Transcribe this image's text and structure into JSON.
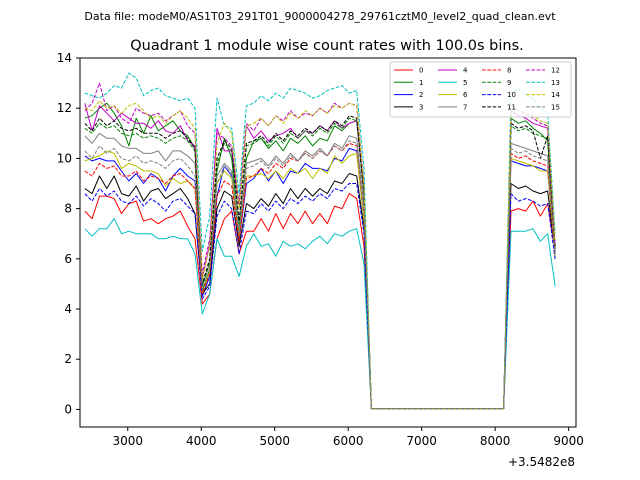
{
  "suptitle": "Data file: modeM0/AS1T03_291T01_9000004278_29761cztM0_level2_quad_clean.evt",
  "chart_data": {
    "type": "line",
    "title": "Quadrant 1 module wise count rates with 100.0s bins.",
    "xlabel": "",
    "ylabel": "",
    "x_offset_label": "+3.5482e8",
    "xlim": [
      2350,
      9100
    ],
    "ylim": [
      -0.7,
      14.0
    ],
    "x_ticks": [
      3000,
      4000,
      5000,
      6000,
      7000,
      8000,
      9000
    ],
    "x_tick_labels": [
      "3000",
      "4000",
      "5000",
      "6000",
      "7000",
      "8000",
      "9000"
    ],
    "y_ticks": [
      0,
      2,
      4,
      6,
      8,
      10,
      12,
      14
    ],
    "y_tick_labels": [
      "0",
      "2",
      "4",
      "6",
      "8",
      "10",
      "12",
      "14"
    ],
    "grid": false,
    "legend_position": "top-right",
    "x": [
      2415,
      2515,
      2615,
      2715,
      2815,
      2915,
      3015,
      3115,
      3215,
      3315,
      3415,
      3515,
      3615,
      3715,
      3815,
      3915,
      4015,
      4115,
      4215,
      4315,
      4415,
      4515,
      4615,
      4715,
      4815,
      4915,
      5015,
      5115,
      5215,
      5315,
      5415,
      5515,
      5615,
      5715,
      5815,
      5915,
      6015,
      6115,
      6215,
      6315,
      8115,
      8215,
      8315,
      8415,
      8515,
      8615,
      8715,
      8815
    ],
    "series": [
      {
        "name": "0",
        "color": "#ff0000",
        "dash": "solid",
        "values": [
          7.9,
          7.6,
          8.5,
          8.5,
          8.4,
          7.8,
          8.2,
          8.3,
          7.5,
          7.6,
          7.4,
          7.6,
          7.7,
          7.9,
          7.3,
          6.8,
          4.2,
          4.6,
          6.8,
          7.6,
          7.9,
          6.2,
          7.1,
          7.1,
          7.6,
          7.1,
          7.8,
          7.2,
          7.8,
          7.4,
          7.9,
          7.4,
          7.8,
          7.4,
          8.1,
          8.0,
          8.6,
          8.4,
          6.5,
          0.02,
          0.02,
          7.9,
          8.0,
          7.9,
          8.3,
          7.7,
          8.2,
          6.3
        ]
      },
      {
        "name": "1",
        "color": "#008000",
        "dash": "solid",
        "values": [
          11.6,
          11.7,
          12.0,
          12.2,
          11.8,
          11.3,
          10.5,
          11.6,
          11.0,
          11.7,
          11.1,
          11.3,
          11.5,
          11.1,
          10.9,
          10.4,
          4.7,
          5.6,
          9.5,
          10.8,
          10.0,
          7.0,
          10.0,
          10.7,
          10.8,
          10.4,
          10.7,
          10.3,
          10.8,
          10.6,
          10.9,
          10.5,
          10.8,
          10.7,
          11.3,
          11.1,
          11.4,
          11.5,
          8.7,
          0.02,
          0.02,
          11.6,
          11.4,
          11.5,
          11.2,
          11.0,
          10.7,
          6.0
        ]
      },
      {
        "name": "2",
        "color": "#0000ff",
        "dash": "solid",
        "values": [
          10.1,
          9.9,
          10.0,
          9.9,
          9.9,
          9.5,
          9.1,
          9.4,
          9.0,
          9.4,
          9.2,
          8.7,
          9.3,
          9.6,
          9.3,
          9.1,
          4.5,
          5.3,
          8.5,
          9.7,
          9.3,
          6.7,
          9.0,
          9.2,
          9.6,
          9.1,
          9.5,
          9.0,
          9.5,
          9.4,
          9.8,
          9.6,
          9.6,
          9.5,
          10.0,
          9.9,
          10.4,
          10.3,
          7.5,
          0.02,
          0.02,
          9.9,
          9.8,
          9.7,
          9.7,
          9.6,
          9.5,
          6.1
        ]
      },
      {
        "name": "3",
        "color": "#000000",
        "dash": "solid",
        "values": [
          8.8,
          8.6,
          9.3,
          8.8,
          9.3,
          8.6,
          8.5,
          8.9,
          8.3,
          8.7,
          8.8,
          8.4,
          8.6,
          8.8,
          8.4,
          7.8,
          4.6,
          5.0,
          8.0,
          8.7,
          8.5,
          6.5,
          8.2,
          8.0,
          8.4,
          8.1,
          8.6,
          8.2,
          8.8,
          8.4,
          8.8,
          8.5,
          8.8,
          8.6,
          9.1,
          9.0,
          9.4,
          9.3,
          7.2,
          0.02,
          0.02,
          9.0,
          8.8,
          8.9,
          8.7,
          8.6,
          8.7,
          6.2
        ]
      },
      {
        "name": "4",
        "color": "#bf00bf",
        "dash": "solid",
        "values": [
          12.2,
          11.1,
          12.1,
          11.8,
          11.5,
          11.8,
          11.6,
          11.4,
          11.4,
          11.2,
          11.5,
          11.1,
          11.0,
          11.3,
          10.7,
          10.5,
          5.2,
          6.6,
          11.2,
          10.3,
          10.3,
          8.1,
          11.3,
          10.8,
          11.1,
          10.7,
          10.9,
          11.0,
          11.2,
          10.8,
          11.1,
          11.0,
          11.3,
          11.1,
          11.5,
          11.2,
          11.4,
          11.5,
          8.7,
          0.02,
          0.02,
          11.9,
          11.7,
          11.6,
          11.4,
          11.3,
          11.2,
          6.4
        ]
      },
      {
        "name": "5",
        "color": "#00bfbf",
        "dash": "solid",
        "values": [
          7.2,
          6.9,
          7.2,
          7.2,
          7.6,
          7.0,
          7.1,
          7.0,
          7.0,
          7.0,
          6.8,
          6.8,
          6.9,
          6.8,
          6.8,
          6.2,
          3.8,
          4.6,
          6.8,
          6.1,
          6.1,
          5.3,
          6.5,
          7.0,
          6.5,
          6.6,
          6.1,
          6.7,
          6.5,
          6.6,
          6.4,
          6.7,
          6.9,
          6.6,
          7.0,
          6.9,
          7.1,
          7.2,
          5.8,
          0.02,
          0.02,
          7.1,
          7.1,
          7.1,
          7.2,
          6.7,
          7.0,
          4.9
        ]
      },
      {
        "name": "6",
        "color": "#bfbf00",
        "dash": "solid",
        "values": [
          9.9,
          10.0,
          10.1,
          10.3,
          10.2,
          9.6,
          9.8,
          9.7,
          9.5,
          9.5,
          9.4,
          8.9,
          9.2,
          9.0,
          9.1,
          8.8,
          4.6,
          5.5,
          9.0,
          9.5,
          9.2,
          6.9,
          9.3,
          9.3,
          9.4,
          9.2,
          9.5,
          9.2,
          9.6,
          9.4,
          9.6,
          9.2,
          9.6,
          9.4,
          10.1,
          9.8,
          10.1,
          10.2,
          7.5,
          0.02,
          0.02,
          10.0,
          9.9,
          9.8,
          9.7,
          9.5,
          9.5,
          6.1
        ]
      },
      {
        "name": "7",
        "color": "#808080",
        "dash": "solid",
        "values": [
          10.9,
          10.6,
          11.0,
          10.8,
          10.8,
          10.5,
          10.4,
          10.4,
          10.2,
          10.2,
          10.3,
          9.9,
          10.3,
          10.3,
          10.1,
          9.8,
          4.9,
          5.8,
          9.3,
          9.8,
          9.5,
          7.3,
          9.8,
          9.9,
          10.0,
          9.7,
          10.1,
          9.8,
          10.2,
          9.9,
          10.3,
          10.1,
          10.4,
          10.1,
          10.6,
          10.4,
          10.9,
          10.8,
          8.1,
          0.02,
          0.02,
          10.6,
          10.5,
          10.4,
          10.3,
          10.2,
          10.1,
          6.3
        ]
      },
      {
        "name": "8",
        "color": "#ff0000",
        "dash": "dashed",
        "values": [
          9.5,
          9.3,
          9.8,
          9.6,
          9.7,
          9.3,
          9.3,
          9.5,
          9.1,
          9.3,
          9.2,
          9.0,
          9.3,
          9.4,
          9.1,
          8.8,
          4.6,
          5.4,
          8.5,
          9.1,
          8.9,
          6.7,
          9.2,
          9.3,
          9.6,
          9.4,
          9.8,
          9.6,
          10.0,
          9.9,
          10.2,
          10.0,
          10.3,
          10.1,
          10.5,
          10.3,
          10.6,
          10.5,
          7.8,
          0.02,
          0.02,
          10.2,
          10.0,
          10.1,
          9.9,
          9.8,
          9.7,
          6.2
        ]
      },
      {
        "name": "9",
        "color": "#008000",
        "dash": "dashed",
        "values": [
          11.2,
          11.0,
          11.4,
          11.2,
          11.3,
          11.0,
          10.9,
          11.0,
          10.8,
          10.9,
          10.8,
          10.6,
          10.8,
          10.9,
          10.7,
          10.3,
          4.9,
          5.9,
          9.8,
          10.6,
          10.3,
          7.4,
          10.5,
          10.6,
          10.8,
          10.5,
          10.9,
          10.6,
          11.0,
          10.8,
          11.1,
          10.9,
          11.2,
          11.0,
          11.4,
          11.2,
          11.6,
          11.5,
          8.5,
          0.02,
          0.02,
          11.3,
          11.1,
          11.2,
          11.0,
          10.9,
          10.8,
          6.4
        ]
      },
      {
        "name": "10",
        "color": "#0000ff",
        "dash": "dashed",
        "values": [
          8.6,
          8.3,
          8.8,
          8.5,
          8.7,
          8.3,
          8.2,
          8.5,
          8.1,
          8.4,
          8.2,
          7.9,
          8.3,
          8.4,
          8.1,
          7.8,
          4.4,
          4.9,
          7.7,
          8.3,
          8.0,
          6.2,
          7.9,
          7.8,
          8.2,
          7.9,
          8.3,
          8.0,
          8.4,
          8.2,
          8.5,
          8.3,
          8.6,
          8.4,
          8.8,
          8.7,
          9.0,
          9.0,
          7.0,
          0.02,
          0.02,
          8.6,
          8.3,
          8.4,
          8.3,
          8.1,
          8.2,
          6.0
        ]
      },
      {
        "name": "11",
        "color": "#000000",
        "dash": "dashed",
        "values": [
          11.4,
          11.1,
          11.6,
          11.3,
          11.5,
          11.2,
          11.1,
          11.2,
          11.0,
          11.0,
          11.0,
          10.8,
          11.0,
          11.1,
          10.8,
          10.4,
          5.0,
          6.0,
          10.0,
          10.7,
          10.4,
          7.5,
          10.6,
          10.7,
          10.9,
          10.6,
          11.0,
          10.7,
          11.1,
          10.9,
          11.2,
          11.0,
          11.3,
          11.1,
          11.5,
          11.3,
          11.7,
          11.6,
          8.6,
          0.02,
          0.02,
          11.4,
          11.2,
          11.3,
          11.1,
          10.0,
          10.9,
          6.5
        ]
      },
      {
        "name": "12",
        "color": "#bf00bf",
        "dash": "dashed",
        "values": [
          11.9,
          12.2,
          13.0,
          11.9,
          12.1,
          11.6,
          11.4,
          12.0,
          11.8,
          11.7,
          11.8,
          11.5,
          11.7,
          11.9,
          11.3,
          11.0,
          5.4,
          6.8,
          11.0,
          10.8,
          10.5,
          8.2,
          11.4,
          11.1,
          11.6,
          11.3,
          11.7,
          11.5,
          11.9,
          11.6,
          11.8,
          11.7,
          12.0,
          11.8,
          12.2,
          12.0,
          12.2,
          12.1,
          9.0,
          0.02,
          0.02,
          12.0,
          11.9,
          11.8,
          11.6,
          11.4,
          11.3,
          6.6
        ]
      },
      {
        "name": "13",
        "color": "#00bfbf",
        "dash": "dashed",
        "values": [
          12.6,
          12.5,
          12.4,
          12.6,
          12.9,
          12.8,
          13.4,
          13.2,
          12.5,
          12.7,
          12.8,
          12.5,
          12.4,
          12.3,
          12.4,
          12.0,
          6.3,
          7.7,
          12.4,
          11.3,
          11.2,
          8.6,
          12.1,
          12.2,
          12.5,
          12.3,
          12.6,
          12.4,
          12.8,
          12.7,
          12.6,
          12.4,
          12.5,
          12.7,
          12.8,
          12.9,
          12.6,
          12.7,
          9.6,
          0.02,
          0.02,
          12.6,
          12.8,
          12.5,
          12.4,
          12.0,
          11.8,
          7.0
        ]
      },
      {
        "name": "14",
        "color": "#bfbf00",
        "dash": "dashed",
        "values": [
          12.0,
          11.9,
          12.3,
          12.0,
          12.1,
          11.8,
          12.1,
          12.2,
          11.9,
          11.6,
          11.7,
          11.4,
          11.7,
          11.9,
          11.6,
          11.2,
          5.2,
          6.5,
          10.6,
          11.4,
          11.0,
          8.0,
          11.3,
          11.4,
          11.6,
          11.3,
          11.7,
          11.4,
          11.8,
          11.6,
          11.9,
          11.7,
          12.0,
          11.8,
          12.1,
          12.0,
          12.2,
          12.1,
          8.9,
          0.02,
          0.02,
          12.0,
          11.9,
          11.8,
          11.7,
          11.5,
          11.4,
          6.7
        ]
      },
      {
        "name": "15",
        "color": "#808080",
        "dash": "dashed",
        "values": [
          10.3,
          10.0,
          10.5,
          10.2,
          10.4,
          10.0,
          9.9,
          10.1,
          9.8,
          9.9,
          9.8,
          9.6,
          9.9,
          10.0,
          9.7,
          9.3,
          4.8,
          5.6,
          9.0,
          9.7,
          9.4,
          7.0,
          9.6,
          9.7,
          9.9,
          9.6,
          10.0,
          9.7,
          10.1,
          9.9,
          10.2,
          10.0,
          10.3,
          10.1,
          10.5,
          10.3,
          10.7,
          10.6,
          7.9,
          0.02,
          0.02,
          10.4,
          10.2,
          10.3,
          10.1,
          10.0,
          9.9,
          6.2
        ]
      }
    ]
  }
}
